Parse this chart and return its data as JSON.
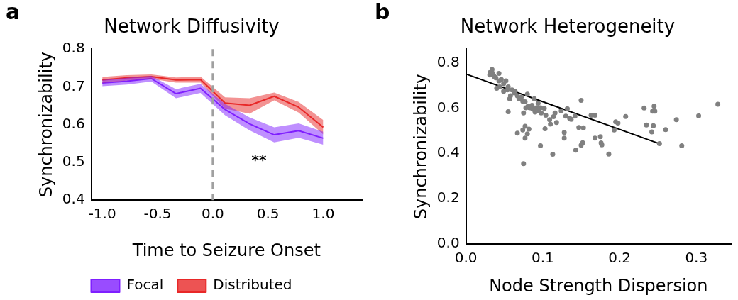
{
  "chart_data": [
    {
      "type": "line",
      "title": "Network Diffusivity",
      "xlabel": "Time to Seizure Onset",
      "ylabel": "Synchronizability",
      "legend": "bottom",
      "x": [
        -1.0,
        -0.778,
        -0.556,
        -0.333,
        -0.111,
        0.111,
        0.333,
        0.556,
        0.778,
        1.0
      ],
      "series": [
        {
          "name": "Focal",
          "color": "#7f1fff",
          "values": [
            0.71,
            0.715,
            0.722,
            0.682,
            0.696,
            0.64,
            0.602,
            0.573,
            0.584,
            0.564
          ],
          "lower": [
            0.702,
            0.706,
            0.714,
            0.67,
            0.684,
            0.625,
            0.585,
            0.553,
            0.565,
            0.547
          ],
          "upper": [
            0.718,
            0.724,
            0.729,
            0.694,
            0.708,
            0.655,
            0.619,
            0.593,
            0.603,
            0.581
          ]
        },
        {
          "name": "Distributed",
          "color": "#e82828",
          "values": [
            0.718,
            0.724,
            0.727,
            0.718,
            0.719,
            0.657,
            0.651,
            0.675,
            0.646,
            0.593
          ],
          "lower": [
            0.71,
            0.717,
            0.721,
            0.711,
            0.711,
            0.642,
            0.629,
            0.664,
            0.632,
            0.574
          ],
          "upper": [
            0.726,
            0.731,
            0.733,
            0.725,
            0.727,
            0.672,
            0.67,
            0.685,
            0.66,
            0.612
          ]
        }
      ],
      "xlim": [
        -1.1,
        1.35
      ],
      "ylim": [
        0.4,
        0.8
      ],
      "xticks": [
        {
          "value": -1,
          "label": "-1.0"
        },
        -0.5,
        {
          "value": 0,
          "label": "0.0"
        },
        0.5,
        {
          "value": 1,
          "label": "1.0"
        }
      ],
      "yticks": [
        0.4,
        0.5,
        0.6,
        0.7,
        0.8
      ],
      "ref_lines": [
        {
          "axis": "x",
          "value": 0,
          "color": "#a0a0a0",
          "line_style": "dashed"
        }
      ],
      "annotations": [
        "a",
        "**"
      ]
    },
    {
      "type": "scatter",
      "title": "Network Heterogeneity",
      "xlabel": "Node Strength Dispersion",
      "ylabel": "Synchronizability",
      "series": [
        {
          "marker": "circle",
          "color": "#808080",
          "x": [
            0.055,
            0.067,
            0.074,
            0.077,
            0.077,
            0.075,
            0.08,
            0.082,
            0.075,
            0.097,
            0.103,
            0.113,
            0.11,
            0.118,
            0.128,
            0.128,
            0.143,
            0.147,
            0.153,
            0.152,
            0.15,
            0.15,
            0.163,
            0.168,
            0.168,
            0.175,
            0.176,
            0.177,
            0.186,
            0.193,
            0.195,
            0.198,
            0.208,
            0.232,
            0.235,
            0.242,
            0.244,
            0.245,
            0.243,
            0.246,
            0.252,
            0.26,
            0.274,
            0.281,
            0.303,
            0.328,
            0.132,
            0.135,
            0.137,
            0.142,
            0.13,
            0.114,
            0.116,
            0.104,
            0.109,
            0.102,
            0.097,
            0.098,
            0.09,
            0.092,
            0.087,
            0.086,
            0.089,
            0.081,
            0.08,
            0.078,
            0.074,
            0.072,
            0.067,
            0.063,
            0.058,
            0.057,
            0.054,
            0.049,
            0.044,
            0.04,
            0.043,
            0.046,
            0.052,
            0.043,
            0.037,
            0.034,
            0.032,
            0.031,
            0.035,
            0.039,
            0.049,
            0.055,
            0.06,
            0.064,
            0.069,
            0.077,
            0.083,
            0.094,
            0.095,
            0.124
          ],
          "values": [
            0.584,
            0.489,
            0.503,
            0.52,
            0.467,
            0.355,
            0.486,
            0.507,
            0.578,
            0.434,
            0.509,
            0.396,
            0.529,
            0.536,
            0.492,
            0.467,
            0.414,
            0.514,
            0.513,
            0.447,
            0.436,
            0.634,
            0.568,
            0.568,
            0.467,
            0.474,
            0.446,
            0.438,
            0.397,
            0.503,
            0.539,
            0.534,
            0.563,
            0.6,
            0.525,
            0.495,
            0.522,
            0.608,
            0.586,
            0.586,
            0.443,
            0.505,
            0.549,
            0.434,
            0.566,
            0.617,
            0.597,
            0.555,
            0.55,
            0.564,
            0.564,
            0.562,
            0.578,
            0.568,
            0.549,
            0.599,
            0.601,
            0.578,
            0.582,
            0.601,
            0.595,
            0.612,
            0.641,
            0.608,
            0.661,
            0.601,
            0.63,
            0.647,
            0.654,
            0.667,
            0.654,
            0.641,
            0.68,
            0.674,
            0.693,
            0.687,
            0.72,
            0.726,
            0.72,
            0.753,
            0.739,
            0.77,
            0.759,
            0.746,
            0.753,
            0.733,
            0.707,
            0.693,
            0.68,
            0.674,
            0.641,
            0.628,
            0.601,
            0.621,
            0.588,
            0.588
          ]
        },
        {
          "type": "line",
          "color": "#000000",
          "x": [
            0,
            0.25
          ],
          "values": [
            0.75,
            0.445
          ]
        }
      ],
      "xlim": [
        0,
        0.345
      ],
      "ylim": [
        0,
        0.86
      ],
      "xticks": [
        {
          "value": 0,
          "label": "0.0"
        },
        0.1,
        0.2,
        0.3
      ],
      "yticks": [
        {
          "value": 0,
          "label": "0.0"
        },
        0.2,
        0.4,
        0.6,
        0.8
      ],
      "annotations": [
        "b"
      ]
    }
  ]
}
